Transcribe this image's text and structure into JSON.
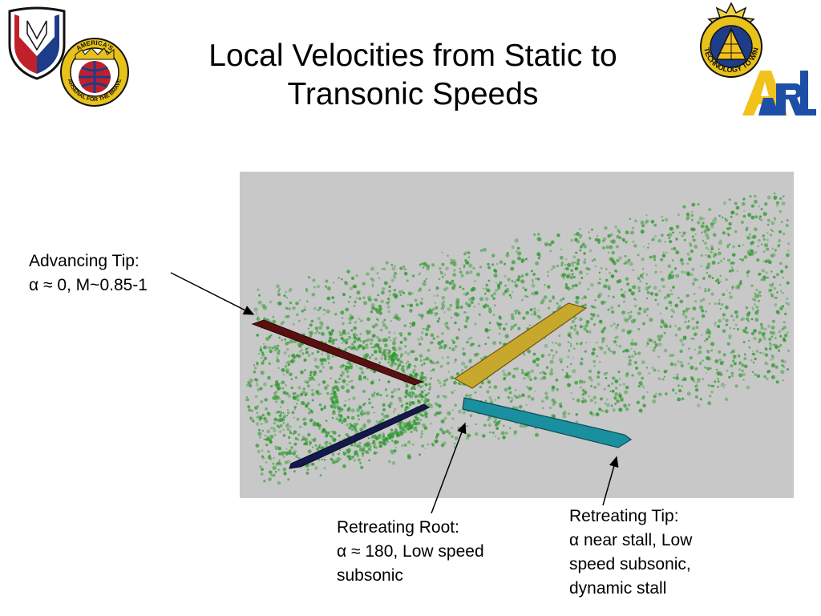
{
  "slide": {
    "title_lines": [
      "Local Velocities from Static to",
      "Transonic Speeds"
    ]
  },
  "logos": {
    "left_1": {
      "icon": "army-materiel-command-shield-icon",
      "colors": [
        "#ffffff",
        "#c0202a",
        "#1d3c8a"
      ]
    },
    "left_2": {
      "icon": "americas-arsenal-for-the-brave-seal-icon",
      "text_top": "AMERICA'S",
      "text_bottom": "ARSENAL FOR THE BRAVE",
      "colors": [
        "#e8c21a",
        "#c0202a",
        "#1d3c8a"
      ]
    },
    "right_1": {
      "icon": "technology-to-win-insignia-icon",
      "text": "TECHNOLOGY TO WIN",
      "colors": [
        "#e8c21a",
        "#1d3c8a",
        "#111111"
      ]
    },
    "right_2": {
      "icon": "arl-logo-icon",
      "text": "ARL",
      "colors": [
        "#f2c21c",
        "#1d4fa6"
      ]
    }
  },
  "visualization": {
    "icon": "rotor-blade-particle-visualization",
    "colors": {
      "background": "#c8c8c8",
      "particles": "#2f9a2f",
      "advancing_blade": "#5a1010",
      "retreating_tip_blade": "#1a8fa0",
      "retreating_root_blade": "#14184a",
      "front_blade": "#c8a82c"
    }
  },
  "callouts": {
    "advancing_tip": {
      "lines": [
        "Advancing Tip:",
        "α ≈ 0, M~0.85-1"
      ]
    },
    "retreating_root": {
      "lines": [
        "Retreating Root:",
        "α ≈ 180, Low speed",
        "subsonic"
      ]
    },
    "retreating_tip": {
      "lines": [
        "Retreating Tip:",
        "α near stall, Low",
        "speed subsonic,",
        "dynamic stall"
      ]
    }
  }
}
